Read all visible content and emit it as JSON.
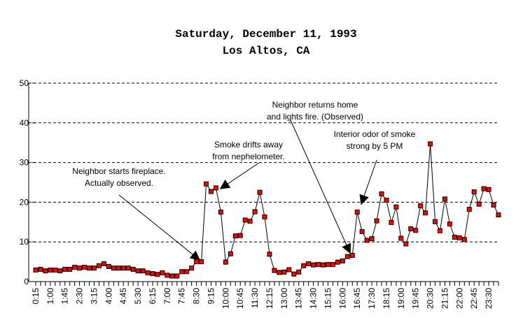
{
  "chart_data": {
    "type": "line",
    "title": [
      "Saturday, December 11, 1993",
      "Los Altos, CA"
    ],
    "xlabel": "",
    "ylabel": "",
    "ylim": [
      0,
      50
    ],
    "yticks": [
      0,
      10,
      20,
      30,
      40,
      50
    ],
    "grid": "horizontal dashed",
    "marker_color": "#ff0000",
    "x": [
      "0:15",
      "0:30",
      "0:45",
      "1:00",
      "1:15",
      "1:30",
      "1:45",
      "2:00",
      "2:15",
      "2:30",
      "2:45",
      "3:00",
      "3:15",
      "3:30",
      "3:45",
      "4:00",
      "4:15",
      "4:30",
      "4:45",
      "5:00",
      "5:15",
      "5:30",
      "5:45",
      "6:00",
      "6:15",
      "6:30",
      "6:45",
      "7:00",
      "7:15",
      "7:30",
      "7:45",
      "8:00",
      "8:15",
      "8:30",
      "8:45",
      "9:00",
      "9:15",
      "9:30",
      "9:45",
      "10:00",
      "10:15",
      "10:30",
      "10:45",
      "11:00",
      "11:15",
      "11:30",
      "11:45",
      "12:00",
      "12:15",
      "12:30",
      "12:45",
      "13:00",
      "13:15",
      "13:30",
      "13:45",
      "14:00",
      "14:15",
      "14:30",
      "14:45",
      "15:00",
      "15:15",
      "15:30",
      "15:45",
      "16:00",
      "16:15",
      "16:30",
      "16:45",
      "17:00",
      "17:15",
      "17:30",
      "17:45",
      "18:00",
      "18:15",
      "18:30",
      "18:45",
      "19:00",
      "19:15",
      "19:30",
      "19:45",
      "20:00",
      "20:15",
      "20:30",
      "20:45",
      "21:00",
      "21:15",
      "21:30",
      "21:45",
      "22:00",
      "22:15",
      "22:30",
      "22:45",
      "23:00",
      "23:15",
      "23:30",
      "23:45",
      "24:00"
    ],
    "tick_labels": [
      "0:15",
      "1:00",
      "1:45",
      "2:30",
      "3:15",
      "4:00",
      "4:45",
      "5:30",
      "6:15",
      "7:00",
      "7:45",
      "8:30",
      "9:15",
      "10:00",
      "10:45",
      "11:30",
      "12:15",
      "13:00",
      "13:45",
      "14:30",
      "15:15",
      "16:00",
      "16:45",
      "17:30",
      "18:15",
      "19:00",
      "19:45",
      "20:30",
      "21:15",
      "22:00",
      "22:45",
      "23:30"
    ],
    "values": [
      2.9,
      3.1,
      2.7,
      2.9,
      2.9,
      2.7,
      3.1,
      3.1,
      3.6,
      3.4,
      3.6,
      3.4,
      3.4,
      4.0,
      4.5,
      3.8,
      3.4,
      3.4,
      3.4,
      3.4,
      3.1,
      2.7,
      2.7,
      2.2,
      2.0,
      1.8,
      2.2,
      1.6,
      1.4,
      1.4,
      2.5,
      2.5,
      3.4,
      5.0,
      5.0,
      24.6,
      22.7,
      23.6,
      17.5,
      4.9,
      7.0,
      11.5,
      11.6,
      15.5,
      15.2,
      17.6,
      22.5,
      16.3,
      6.9,
      2.8,
      2.3,
      2.4,
      3.0,
      1.9,
      2.4,
      4.0,
      4.5,
      4.2,
      4.3,
      4.2,
      4.3,
      4.3,
      4.9,
      5.2,
      6.3,
      6.6,
      17.5,
      12.6,
      10.4,
      10.8,
      15.3,
      22.1,
      20.5,
      14.9,
      18.8,
      10.9,
      9.5,
      13.3,
      12.9,
      19.1,
      17.3,
      34.7,
      15.1,
      12.8,
      20.8,
      14.5,
      11.2,
      11.0,
      10.6,
      18.2,
      22.6,
      19.5,
      23.4,
      23.2,
      19.3,
      16.8
    ],
    "annotations": [
      {
        "lines": [
          "Neighbor starts fireplace.",
          "Actually observed."
        ],
        "points_to": "8:30"
      },
      {
        "lines": [
          "Smoke drifts away",
          "from nephelometer."
        ],
        "points_to": "9:45"
      },
      {
        "lines": [
          "Neighbor returns home",
          "and lights fire. (Observed)"
        ],
        "points_to": "16:30"
      },
      {
        "lines": [
          "Interior odor of smoke",
          "strong by 5 PM"
        ],
        "points_to": "17:00"
      }
    ]
  }
}
